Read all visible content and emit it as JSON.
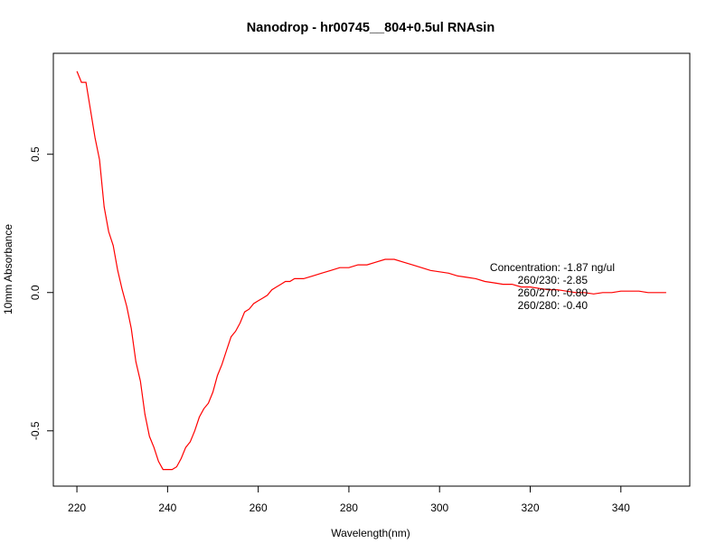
{
  "chart_data": {
    "type": "line",
    "title": "Nanodrop - hr00745__804+0.5ul RNAsin",
    "xlabel": "Wavelength(nm)",
    "ylabel": "10mm Absorbance",
    "xlim": [
      214.8,
      355.2
    ],
    "ylim": [
      -0.7,
      0.865
    ],
    "x_ticks": [
      220,
      240,
      260,
      280,
      300,
      320,
      340
    ],
    "x_tick_labels": [
      "220",
      "240",
      "260",
      "280",
      "300",
      "320",
      "340"
    ],
    "y_ticks": [
      -0.5,
      0.0,
      0.5
    ],
    "y_tick_labels": [
      "-0.5",
      "0.0",
      "0.5"
    ],
    "grid": false,
    "legend": "none",
    "annotations": [
      "Concentration: -1.87 ng/ul",
      "260/230: -2.85",
      "260/270: -0.80",
      "260/280: -0.40"
    ],
    "series": [
      {
        "color": "#ff0000",
        "x": [
          220,
          221,
          222,
          223,
          224,
          225,
          226,
          227,
          228,
          229,
          230,
          231,
          232,
          233,
          234,
          235,
          236,
          237,
          238,
          239,
          240,
          241,
          242,
          243,
          244,
          245,
          246,
          247,
          248,
          249,
          250,
          251,
          252,
          253,
          254,
          255,
          256,
          257,
          258,
          259,
          260,
          261,
          262,
          263,
          264,
          265,
          266,
          267,
          268,
          269,
          270,
          272,
          274,
          276,
          278,
          280,
          282,
          284,
          286,
          288,
          290,
          292,
          294,
          296,
          298,
          300,
          302,
          304,
          306,
          308,
          310,
          312,
          314,
          316,
          318,
          320,
          322,
          324,
          326,
          328,
          330,
          332,
          334,
          336,
          338,
          340,
          342,
          344,
          346,
          348,
          350
        ],
        "y": [
          0.8,
          0.76,
          0.76,
          0.66,
          0.56,
          0.48,
          0.31,
          0.22,
          0.17,
          0.08,
          0.01,
          -0.05,
          -0.13,
          -0.25,
          -0.32,
          -0.44,
          -0.52,
          -0.56,
          -0.61,
          -0.64,
          -0.64,
          -0.64,
          -0.63,
          -0.6,
          -0.56,
          -0.54,
          -0.5,
          -0.45,
          -0.42,
          -0.4,
          -0.36,
          -0.3,
          -0.26,
          -0.21,
          -0.16,
          -0.14,
          -0.11,
          -0.07,
          -0.06,
          -0.04,
          -0.03,
          -0.02,
          -0.01,
          0.01,
          0.02,
          0.03,
          0.04,
          0.04,
          0.05,
          0.05,
          0.05,
          0.06,
          0.07,
          0.08,
          0.09,
          0.09,
          0.1,
          0.1,
          0.11,
          0.12,
          0.12,
          0.11,
          0.1,
          0.09,
          0.08,
          0.075,
          0.07,
          0.06,
          0.055,
          0.05,
          0.04,
          0.035,
          0.03,
          0.03,
          0.02,
          0.02,
          0.015,
          0.01,
          0.01,
          0.005,
          0.0,
          0.0,
          -0.005,
          0.0,
          0.0,
          0.005,
          0.005,
          0.005,
          0.0,
          0.0,
          0.0
        ]
      }
    ]
  }
}
